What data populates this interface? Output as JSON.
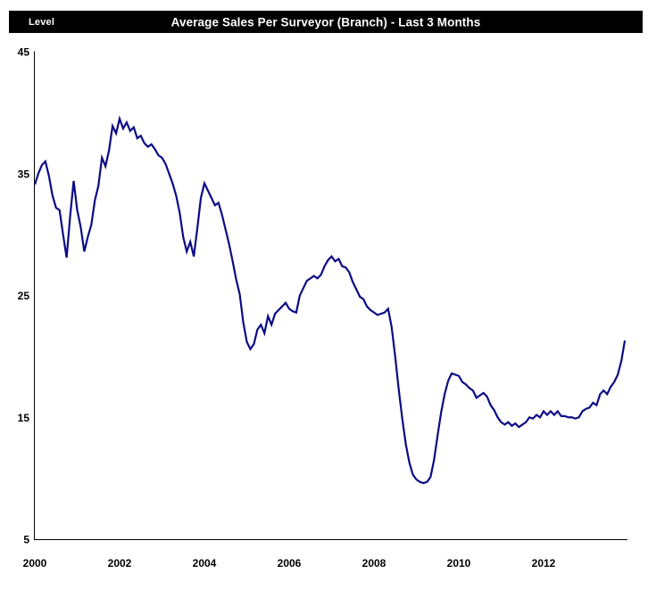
{
  "header": {
    "level_label": "Level",
    "title": "Average Sales Per Surveyor (Branch) - Last 3 Months"
  },
  "chart_data": {
    "type": "line",
    "title": "Average Sales Per Surveyor (Branch) - Last 3 Months",
    "ylabel": "Level",
    "xlabel": "",
    "frequency": "monthly",
    "x_start": "2000-01",
    "x_end": "2013-12",
    "x_tick_labels": [
      "2000",
      "2002",
      "2004",
      "2006",
      "2008",
      "2010",
      "2012"
    ],
    "y_ticks": [
      45,
      35,
      25,
      15,
      5
    ],
    "ylim": [
      5,
      45
    ],
    "xlim_years": [
      2000,
      2014
    ],
    "grid": false,
    "legend_position": "none",
    "line_color": "#0b0b85",
    "axis_color": "#000000",
    "header_bg_color": "#000000",
    "header_text_color": "#ffffff",
    "series": [
      {
        "name": "Average Sales Per Surveyor (Branch) - Last 3 Months",
        "values": [
          34.1,
          35.0,
          35.7,
          36.0,
          34.8,
          33.2,
          32.2,
          32.0,
          30.0,
          28.1,
          31.5,
          34.4,
          32.0,
          30.6,
          28.6,
          29.8,
          30.8,
          32.8,
          34.0,
          36.3,
          35.6,
          36.9,
          38.9,
          38.3,
          39.5,
          38.7,
          39.2,
          38.5,
          38.8,
          37.9,
          38.1,
          37.5,
          37.2,
          37.4,
          37.0,
          36.5,
          36.3,
          35.8,
          35.0,
          34.2,
          33.2,
          31.8,
          29.8,
          28.6,
          29.4,
          28.2,
          30.5,
          33.0,
          34.2,
          33.6,
          33.0,
          32.4,
          32.6,
          31.6,
          30.4,
          29.2,
          27.8,
          26.3,
          25.1,
          22.8,
          21.2,
          20.6,
          21.0,
          22.2,
          22.6,
          21.9,
          23.3,
          22.6,
          23.5,
          23.8,
          24.1,
          24.4,
          23.9,
          23.7,
          23.6,
          25.0,
          25.6,
          26.2,
          26.4,
          26.6,
          26.4,
          26.7,
          27.4,
          27.9,
          28.2,
          27.8,
          28.0,
          27.4,
          27.3,
          26.9,
          26.1,
          25.5,
          24.9,
          24.7,
          24.1,
          23.8,
          23.6,
          23.4,
          23.5,
          23.6,
          23.9,
          22.4,
          20.0,
          17.3,
          14.9,
          12.8,
          11.3,
          10.3,
          9.9,
          9.7,
          9.6,
          9.7,
          10.1,
          11.5,
          13.5,
          15.4,
          16.9,
          18.0,
          18.6,
          18.5,
          18.4,
          17.9,
          17.7,
          17.4,
          17.2,
          16.6,
          16.8,
          17.0,
          16.7,
          16.0,
          15.6,
          15.0,
          14.6,
          14.4,
          14.6,
          14.3,
          14.5,
          14.2,
          14.4,
          14.6,
          15.0,
          14.9,
          15.2,
          15.0,
          15.5,
          15.2,
          15.5,
          15.2,
          15.5,
          15.1,
          15.1,
          15.0,
          15.0,
          14.9,
          15.0,
          15.5,
          15.7,
          15.8,
          16.2,
          16.0,
          16.9,
          17.2,
          16.9,
          17.5,
          17.9,
          18.5,
          19.6,
          21.3
        ]
      }
    ]
  }
}
